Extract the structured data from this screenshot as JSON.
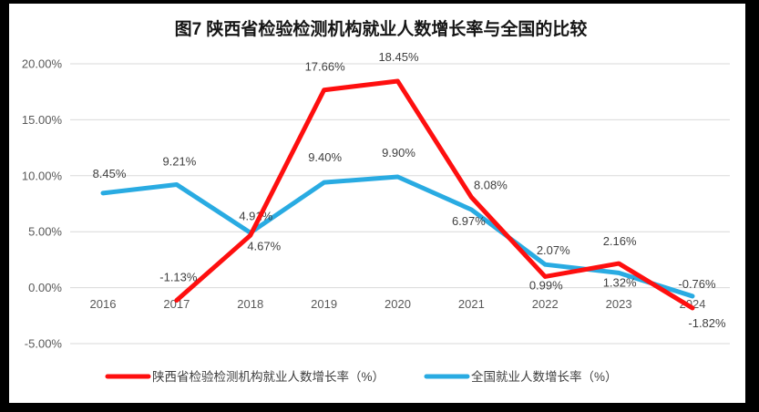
{
  "figure": {
    "border_color": "#000000",
    "background_color": "#ffffff"
  },
  "chart_data": {
    "type": "line",
    "title": "图7 陕西省检验检测机构就业人数增长率与全国的比较",
    "categories": [
      "2016",
      "2017",
      "2018",
      "2019",
      "2020",
      "2021",
      "2022",
      "2023",
      "2024"
    ],
    "y_axis": {
      "ticks": [
        "20.00%",
        "15.00%",
        "10.00%",
        "5.00%",
        "0.00%",
        "-5.00%"
      ],
      "tick_values": [
        20,
        15,
        10,
        5,
        0,
        -5
      ],
      "min": -5,
      "max": 20,
      "grid": true,
      "grid_color": "#d9d9d9",
      "tick_color": "#595959"
    },
    "series": [
      {
        "name": "陕西省检验检测机构就业人数增长率（%）",
        "color": "#fe0f0f",
        "values": [
          null,
          -1.13,
          4.67,
          17.66,
          18.45,
          8.08,
          0.99,
          2.16,
          -1.82
        ],
        "labels": [
          null,
          "-1.13%",
          "4.67%",
          "17.66%",
          "18.45%",
          "8.08%",
          "0.99%",
          "2.16%",
          "-1.82%"
        ],
        "label_offsets": [
          null,
          [
            2,
            -21
          ],
          [
            15,
            16
          ],
          [
            1,
            -21
          ],
          [
            1,
            -22
          ],
          [
            21,
            -9
          ],
          [
            1,
            14
          ],
          [
            1,
            -20
          ],
          [
            16,
            21
          ]
        ]
      },
      {
        "name": "全国就业人数增长率（%）",
        "color": "#29abe2",
        "values": [
          8.45,
          9.21,
          4.91,
          9.4,
          9.9,
          6.97,
          2.07,
          1.32,
          -0.76
        ],
        "labels": [
          "8.45%",
          "9.21%",
          "4.91%",
          "9.40%",
          "9.90%",
          "6.97%",
          "2.07%",
          "1.32%",
          "-0.76%"
        ],
        "label_offsets": [
          [
            7,
            -17
          ],
          [
            3,
            -21
          ],
          [
            6,
            -14
          ],
          [
            1,
            -23
          ],
          [
            1,
            -22
          ],
          [
            -3,
            17
          ],
          [
            9,
            -11
          ],
          [
            1,
            15
          ],
          [
            5,
            -9
          ]
        ]
      }
    ],
    "legend_position": "bottom",
    "label_color": "#3f3f3f"
  }
}
